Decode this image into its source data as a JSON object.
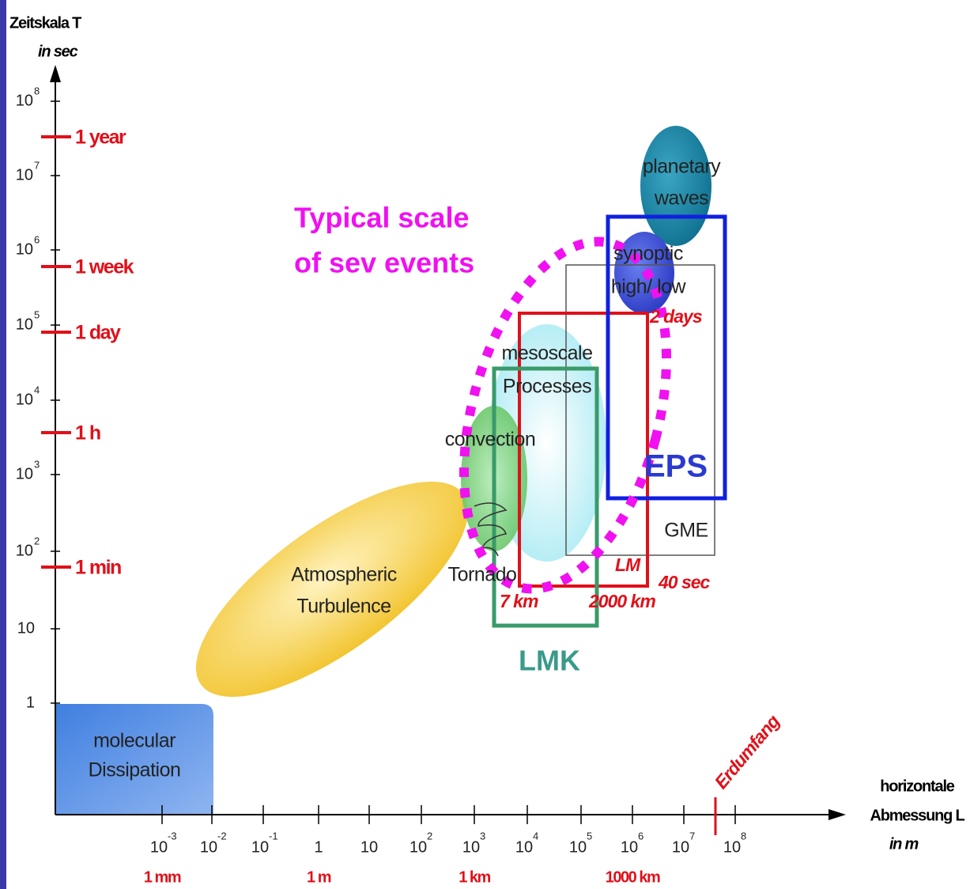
{
  "y_axis": {
    "title": "Zeitskala T",
    "unit": "in sec",
    "ticks": [
      {
        "text": "10",
        "sup": "8"
      },
      {
        "text": "10",
        "sup": "7"
      },
      {
        "text": "10",
        "sup": "6"
      },
      {
        "text": "10",
        "sup": "5"
      },
      {
        "text": "10",
        "sup": "4"
      },
      {
        "text": "10",
        "sup": "3"
      },
      {
        "text": "10",
        "sup": "2"
      },
      {
        "text": "10"
      },
      {
        "text": "1"
      }
    ],
    "time_marks": [
      "1 year",
      "1 week",
      "1 day",
      "1 h",
      "1 min"
    ]
  },
  "x_axis": {
    "title": [
      "horizontale",
      "Abmessung L"
    ],
    "unit": "in m",
    "ticks": [
      {
        "text": "10",
        "sup": "-3"
      },
      {
        "text": "10",
        "sup": "-2"
      },
      {
        "text": "10",
        "sup": "-1"
      },
      {
        "text": "1"
      },
      {
        "text": "10"
      },
      {
        "text": "10",
        "sup": "2"
      },
      {
        "text": "10",
        "sup": "3"
      },
      {
        "text": "10",
        "sup": "4"
      },
      {
        "text": "10",
        "sup": "5"
      },
      {
        "text": "10",
        "sup": "6"
      },
      {
        "text": "10",
        "sup": "7"
      },
      {
        "text": "10",
        "sup": "8"
      }
    ],
    "length_marks": [
      "1 mm",
      "1 m",
      "1 km",
      "1000 km"
    ]
  },
  "regions": [
    [
      "molecular",
      "Dissipation"
    ],
    [
      "Atmospheric",
      "Turbulence"
    ],
    [
      "convection"
    ],
    [
      "Tornado"
    ],
    [
      "mesoscale",
      "Processes"
    ],
    [
      "synoptic",
      "high/ low"
    ],
    [
      "planetary",
      "waves"
    ],
    [
      "GME"
    ]
  ],
  "annotations": {
    "severe": [
      "Typical scale",
      "of sev events"
    ],
    "lmk": "LMK",
    "eps": "EPS",
    "lm": "LM",
    "km7": "7 km",
    "km2000": "2000 km",
    "sec40": "40 sec",
    "days2": "2 days",
    "erdumfang": "Erdumfang"
  }
}
